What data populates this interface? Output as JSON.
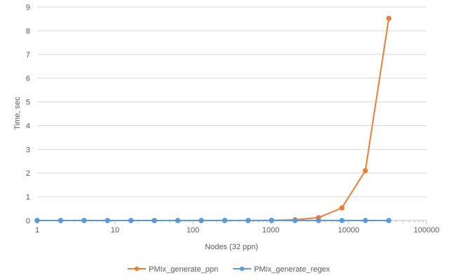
{
  "chart_data": {
    "type": "line",
    "xlabel": "Nodes (32 ppn)",
    "ylabel": "Time, sec",
    "x_scale": "log10",
    "xlim": [
      1,
      100000
    ],
    "ylim": [
      0,
      9
    ],
    "x_ticks": [
      "1",
      "10",
      "100",
      "1000",
      "10000",
      "100000"
    ],
    "y_ticks": [
      "0",
      "1",
      "2",
      "3",
      "4",
      "5",
      "6",
      "7",
      "8",
      "9"
    ],
    "grid": {
      "x": false,
      "y": true
    },
    "legend_position": "bottom",
    "x": [
      1,
      2,
      4,
      8,
      16,
      32,
      64,
      128,
      256,
      512,
      1024,
      2048,
      4096,
      8192,
      16384,
      32768
    ],
    "series": [
      {
        "name": "PMIx_generate_ppn",
        "color": "#ED7D31",
        "values": [
          0,
          0,
          0,
          0,
          0,
          0,
          0,
          0,
          0,
          0,
          0.01,
          0.03,
          0.12,
          0.53,
          2.1,
          8.52
        ]
      },
      {
        "name": "PMIx_generate_regex",
        "color": "#5B9BD5",
        "values": [
          0,
          0,
          0,
          0,
          0,
          0,
          0,
          0,
          0,
          0,
          0,
          0,
          0,
          0,
          0,
          0
        ]
      }
    ]
  }
}
